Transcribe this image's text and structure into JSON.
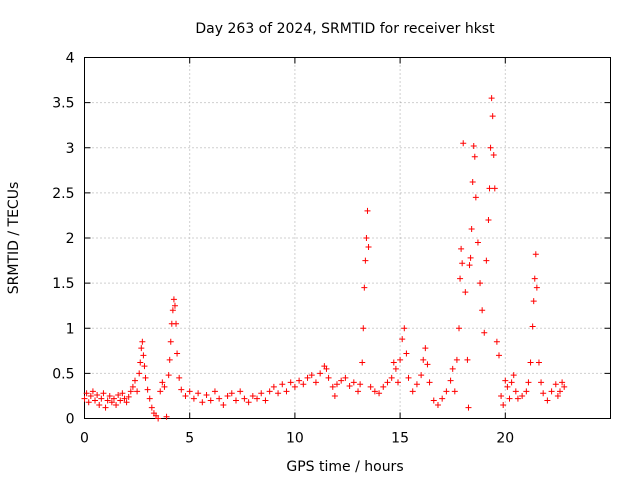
{
  "chart_data": {
    "type": "scatter",
    "title": "Day 263 of 2024, SRMTID for receiver hkst",
    "xlabel": "GPS time / hours",
    "ylabel": "SRMTID / TECUs",
    "xlim": [
      0,
      25
    ],
    "ylim": [
      0,
      4
    ],
    "xticks": [
      0,
      5,
      10,
      15,
      20
    ],
    "xtick_labels": [
      "0",
      "5",
      "10",
      "15",
      "20"
    ],
    "yticks": [
      0,
      0.5,
      1,
      1.5,
      2,
      2.5,
      3,
      3.5,
      4
    ],
    "ytick_labels": [
      "0",
      "0.5",
      "1",
      "1.5",
      "2",
      "2.5",
      "3",
      "3.5",
      "4"
    ],
    "grid": true,
    "marker": "+",
    "color": "#ff0000",
    "series": [
      {
        "name": "SRMTID",
        "points": [
          [
            0.0,
            0.22
          ],
          [
            0.1,
            0.28
          ],
          [
            0.2,
            0.18
          ],
          [
            0.3,
            0.25
          ],
          [
            0.4,
            0.3
          ],
          [
            0.5,
            0.2
          ],
          [
            0.6,
            0.26
          ],
          [
            0.7,
            0.15
          ],
          [
            0.8,
            0.22
          ],
          [
            0.9,
            0.28
          ],
          [
            1.0,
            0.12
          ],
          [
            1.1,
            0.2
          ],
          [
            1.2,
            0.25
          ],
          [
            1.3,
            0.18
          ],
          [
            1.4,
            0.22
          ],
          [
            1.5,
            0.15
          ],
          [
            1.6,
            0.26
          ],
          [
            1.7,
            0.2
          ],
          [
            1.8,
            0.28
          ],
          [
            1.9,
            0.22
          ],
          [
            2.0,
            0.18
          ],
          [
            2.1,
            0.24
          ],
          [
            2.2,
            0.3
          ],
          [
            2.3,
            0.35
          ],
          [
            2.4,
            0.42
          ],
          [
            2.5,
            0.3
          ],
          [
            2.6,
            0.5
          ],
          [
            2.65,
            0.62
          ],
          [
            2.7,
            0.78
          ],
          [
            2.75,
            0.85
          ],
          [
            2.8,
            0.7
          ],
          [
            2.85,
            0.58
          ],
          [
            2.9,
            0.45
          ],
          [
            3.0,
            0.32
          ],
          [
            3.1,
            0.22
          ],
          [
            3.2,
            0.12
          ],
          [
            3.3,
            0.06
          ],
          [
            3.4,
            0.03
          ],
          [
            3.5,
            0.0
          ],
          [
            3.6,
            0.3
          ],
          [
            3.7,
            0.4
          ],
          [
            3.8,
            0.35
          ],
          [
            3.9,
            0.02
          ],
          [
            4.0,
            0.48
          ],
          [
            4.05,
            0.65
          ],
          [
            4.1,
            0.85
          ],
          [
            4.15,
            1.05
          ],
          [
            4.2,
            1.2
          ],
          [
            4.25,
            1.32
          ],
          [
            4.3,
            1.25
          ],
          [
            4.35,
            1.05
          ],
          [
            4.4,
            0.72
          ],
          [
            4.5,
            0.45
          ],
          [
            4.6,
            0.32
          ],
          [
            4.8,
            0.25
          ],
          [
            5.0,
            0.3
          ],
          [
            5.2,
            0.22
          ],
          [
            5.4,
            0.28
          ],
          [
            5.6,
            0.18
          ],
          [
            5.8,
            0.26
          ],
          [
            6.0,
            0.2
          ],
          [
            6.2,
            0.3
          ],
          [
            6.4,
            0.22
          ],
          [
            6.6,
            0.15
          ],
          [
            6.8,
            0.25
          ],
          [
            7.0,
            0.28
          ],
          [
            7.2,
            0.2
          ],
          [
            7.4,
            0.3
          ],
          [
            7.6,
            0.22
          ],
          [
            7.8,
            0.18
          ],
          [
            8.0,
            0.25
          ],
          [
            8.2,
            0.22
          ],
          [
            8.4,
            0.28
          ],
          [
            8.6,
            0.2
          ],
          [
            8.8,
            0.3
          ],
          [
            9.0,
            0.35
          ],
          [
            9.2,
            0.28
          ],
          [
            9.4,
            0.38
          ],
          [
            9.6,
            0.3
          ],
          [
            9.8,
            0.4
          ],
          [
            10.0,
            0.35
          ],
          [
            10.2,
            0.42
          ],
          [
            10.4,
            0.38
          ],
          [
            10.6,
            0.45
          ],
          [
            10.8,
            0.48
          ],
          [
            11.0,
            0.4
          ],
          [
            11.2,
            0.5
          ],
          [
            11.4,
            0.58
          ],
          [
            11.5,
            0.55
          ],
          [
            11.6,
            0.45
          ],
          [
            11.8,
            0.35
          ],
          [
            11.9,
            0.25
          ],
          [
            12.0,
            0.38
          ],
          [
            12.2,
            0.42
          ],
          [
            12.4,
            0.45
          ],
          [
            12.6,
            0.36
          ],
          [
            12.8,
            0.4
          ],
          [
            13.0,
            0.3
          ],
          [
            13.1,
            0.38
          ],
          [
            13.2,
            0.62
          ],
          [
            13.25,
            1.0
          ],
          [
            13.3,
            1.45
          ],
          [
            13.35,
            1.75
          ],
          [
            13.4,
            2.0
          ],
          [
            13.45,
            2.3
          ],
          [
            13.5,
            1.9
          ],
          [
            13.6,
            0.35
          ],
          [
            13.8,
            0.3
          ],
          [
            14.0,
            0.28
          ],
          [
            14.2,
            0.35
          ],
          [
            14.4,
            0.4
          ],
          [
            14.6,
            0.45
          ],
          [
            14.7,
            0.62
          ],
          [
            14.8,
            0.55
          ],
          [
            14.9,
            0.4
          ],
          [
            15.0,
            0.65
          ],
          [
            15.1,
            0.88
          ],
          [
            15.2,
            1.0
          ],
          [
            15.3,
            0.72
          ],
          [
            15.4,
            0.45
          ],
          [
            15.6,
            0.3
          ],
          [
            15.8,
            0.38
          ],
          [
            16.0,
            0.48
          ],
          [
            16.1,
            0.65
          ],
          [
            16.2,
            0.78
          ],
          [
            16.3,
            0.6
          ],
          [
            16.4,
            0.4
          ],
          [
            16.6,
            0.2
          ],
          [
            16.8,
            0.15
          ],
          [
            17.0,
            0.22
          ],
          [
            17.2,
            0.3
          ],
          [
            17.4,
            0.42
          ],
          [
            17.5,
            0.55
          ],
          [
            17.6,
            0.3
          ],
          [
            17.7,
            0.65
          ],
          [
            17.8,
            1.0
          ],
          [
            17.85,
            1.55
          ],
          [
            17.9,
            1.88
          ],
          [
            17.95,
            1.72
          ],
          [
            18.0,
            3.05
          ],
          [
            18.1,
            1.4
          ],
          [
            18.2,
            0.65
          ],
          [
            18.25,
            0.12
          ],
          [
            18.3,
            1.7
          ],
          [
            18.35,
            1.78
          ],
          [
            18.4,
            2.1
          ],
          [
            18.45,
            2.62
          ],
          [
            18.5,
            3.02
          ],
          [
            18.55,
            2.9
          ],
          [
            18.6,
            2.45
          ],
          [
            18.7,
            1.95
          ],
          [
            18.8,
            1.5
          ],
          [
            18.9,
            1.2
          ],
          [
            19.0,
            0.95
          ],
          [
            19.1,
            1.75
          ],
          [
            19.2,
            2.2
          ],
          [
            19.25,
            2.55
          ],
          [
            19.3,
            3.0
          ],
          [
            19.35,
            3.55
          ],
          [
            19.4,
            3.35
          ],
          [
            19.45,
            2.92
          ],
          [
            19.5,
            2.55
          ],
          [
            19.6,
            0.85
          ],
          [
            19.7,
            0.7
          ],
          [
            19.8,
            0.25
          ],
          [
            19.9,
            0.15
          ],
          [
            20.0,
            0.42
          ],
          [
            20.1,
            0.35
          ],
          [
            20.2,
            0.22
          ],
          [
            20.3,
            0.4
          ],
          [
            20.4,
            0.48
          ],
          [
            20.5,
            0.3
          ],
          [
            20.6,
            0.22
          ],
          [
            20.8,
            0.25
          ],
          [
            21.0,
            0.3
          ],
          [
            21.1,
            0.4
          ],
          [
            21.2,
            0.62
          ],
          [
            21.3,
            1.02
          ],
          [
            21.35,
            1.3
          ],
          [
            21.4,
            1.55
          ],
          [
            21.45,
            1.82
          ],
          [
            21.5,
            1.45
          ],
          [
            21.6,
            0.62
          ],
          [
            21.7,
            0.4
          ],
          [
            21.8,
            0.28
          ],
          [
            22.0,
            0.2
          ],
          [
            22.2,
            0.3
          ],
          [
            22.4,
            0.38
          ],
          [
            22.5,
            0.25
          ],
          [
            22.6,
            0.3
          ],
          [
            22.7,
            0.4
          ],
          [
            22.8,
            0.35
          ]
        ]
      }
    ]
  }
}
